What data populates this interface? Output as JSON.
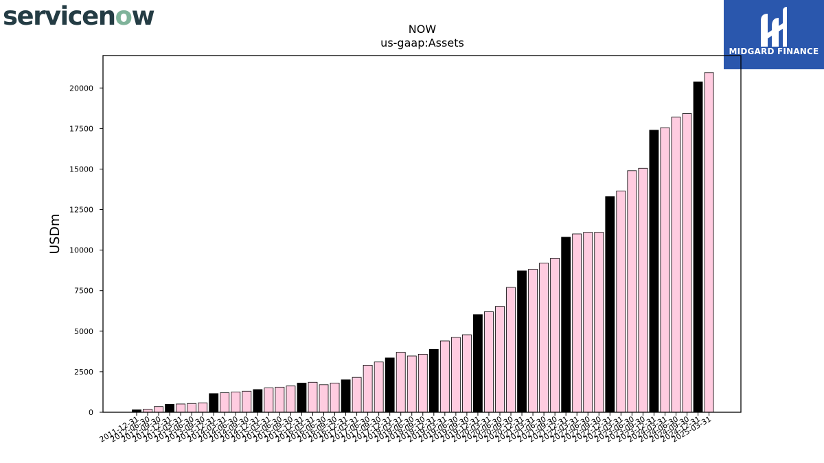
{
  "brand": {
    "left_logo": "servicenow",
    "right_logo_text": "MIDGARD FINANCE",
    "right_logo_bg": "#2a57ad"
  },
  "chart_data": {
    "type": "bar",
    "title": "NOW",
    "subtitle": "us-gaap:Assets",
    "ylabel": "USDm",
    "xlabel": "",
    "ylim": [
      0,
      22000
    ],
    "yticks": [
      0,
      2500,
      5000,
      7500,
      10000,
      12500,
      15000,
      17500,
      20000
    ],
    "grid": false,
    "colors": {
      "year_end": "#000000",
      "quarter": "#ffcce0"
    },
    "categories": [
      "2011-12-31",
      "2012-06-30",
      "2012-09-30",
      "2012-12-31",
      "2013-03-31",
      "2013-06-30",
      "2013-09-30",
      "2013-12-31",
      "2014-03-31",
      "2014-06-30",
      "2014-09-30",
      "2014-12-31",
      "2015-03-31",
      "2015-06-30",
      "2015-09-30",
      "2015-12-31",
      "2016-03-31",
      "2016-06-30",
      "2016-09-30",
      "2016-12-31",
      "2017-03-31",
      "2017-06-30",
      "2017-09-30",
      "2017-12-31",
      "2018-03-31",
      "2018-06-30",
      "2018-09-30",
      "2018-12-31",
      "2019-03-31",
      "2019-06-30",
      "2019-09-30",
      "2019-12-31",
      "2020-03-31",
      "2020-06-30",
      "2020-09-30",
      "2020-12-31",
      "2021-03-31",
      "2021-06-30",
      "2021-09-30",
      "2021-12-31",
      "2022-03-31",
      "2022-06-30",
      "2022-09-30",
      "2022-12-31",
      "2023-03-31",
      "2023-06-30",
      "2023-09-30",
      "2023-12-31",
      "2024-03-31",
      "2024-06-30",
      "2024-09-30",
      "2024-12-31",
      "2025-03-31"
    ],
    "values": [
      150,
      190,
      350,
      490,
      510,
      540,
      580,
      1150,
      1200,
      1250,
      1300,
      1400,
      1500,
      1550,
      1620,
      1800,
      1850,
      1700,
      1800,
      2000,
      2150,
      2900,
      3100,
      3350,
      3700,
      3470,
      3580,
      3880,
      4400,
      4620,
      4780,
      6020,
      6200,
      6530,
      7700,
      8720,
      8820,
      9200,
      9500,
      10800,
      11000,
      11100,
      11100,
      13300,
      13650,
      14900,
      15050,
      17400,
      17550,
      18200,
      18420,
      20380,
      20950
    ]
  }
}
